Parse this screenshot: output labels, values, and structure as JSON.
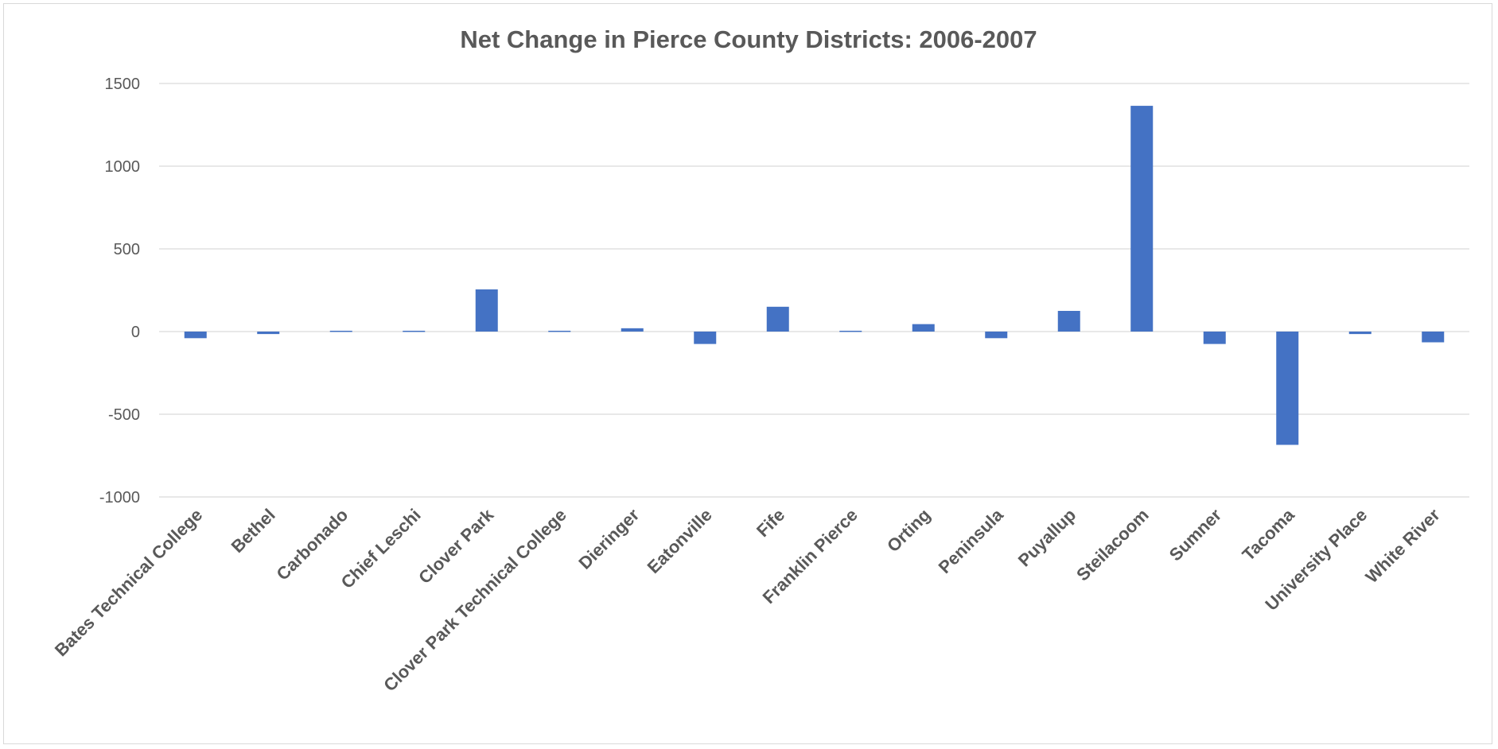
{
  "chart_data": {
    "type": "bar",
    "title": "Net Change in Pierce County Districts: 2006-2007",
    "xlabel": "",
    "ylabel": "",
    "ylim": [
      -1000,
      1500
    ],
    "yticks": [
      1500,
      1000,
      500,
      0,
      -500,
      -1000
    ],
    "grid": true,
    "legend": "none",
    "bar_color": "#4472c4",
    "categories": [
      "Bates Technical College",
      "Bethel",
      "Carbonado",
      "Chief Leschi",
      "Clover Park",
      "Clover Park Technical College",
      "Dieringer",
      "Eatonville",
      "Fife",
      "Franklin Pierce",
      "Orting",
      "Peninsula",
      "Puyallup",
      "Steilacoom",
      "Sumner",
      "Tacoma",
      "University Place",
      "White River"
    ],
    "values": [
      -40,
      -15,
      5,
      5,
      255,
      5,
      20,
      -75,
      150,
      5,
      45,
      -40,
      125,
      1365,
      -75,
      -685,
      -15,
      -65
    ]
  }
}
